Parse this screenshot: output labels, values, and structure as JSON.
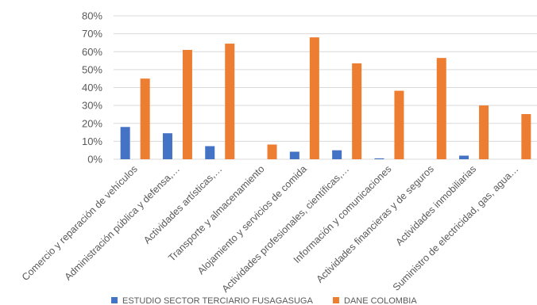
{
  "chart_data": {
    "type": "bar",
    "title": "",
    "xlabel": "",
    "ylabel": "",
    "ylim": [
      0,
      0.8
    ],
    "yticks": [
      "0%",
      "10%",
      "20%",
      "30%",
      "40%",
      "50%",
      "60%",
      "70%",
      "80%"
    ],
    "grid": true,
    "legend_position": "bottom",
    "categories": [
      "Comercio y reparación de vehículos",
      "Administración pública y defensa,…",
      "Actividades artísticas,…",
      "Transporte y almacenamiento",
      "Alojamiento y servicios de comida",
      "Actividades profesionales, científicas,…",
      "Información y comunicaciones",
      "Actividades financieras y de seguros",
      "Actividades inmobiliarias",
      "Suministro de electricidad, gas, agua…"
    ],
    "series": [
      {
        "name": "ESTUDIO SECTOR TERCIARIO FUSAGASUGA",
        "color": "#4472c4",
        "values": [
          0.18,
          0.145,
          0.073,
          0.0,
          0.042,
          0.05,
          0.005,
          0.0,
          0.02,
          0.0
        ]
      },
      {
        "name": "DANE COLOMBIA",
        "color": "#ed7d31",
        "values": [
          0.45,
          0.61,
          0.645,
          0.082,
          0.68,
          0.535,
          0.382,
          0.565,
          0.3,
          0.252
        ]
      }
    ]
  }
}
